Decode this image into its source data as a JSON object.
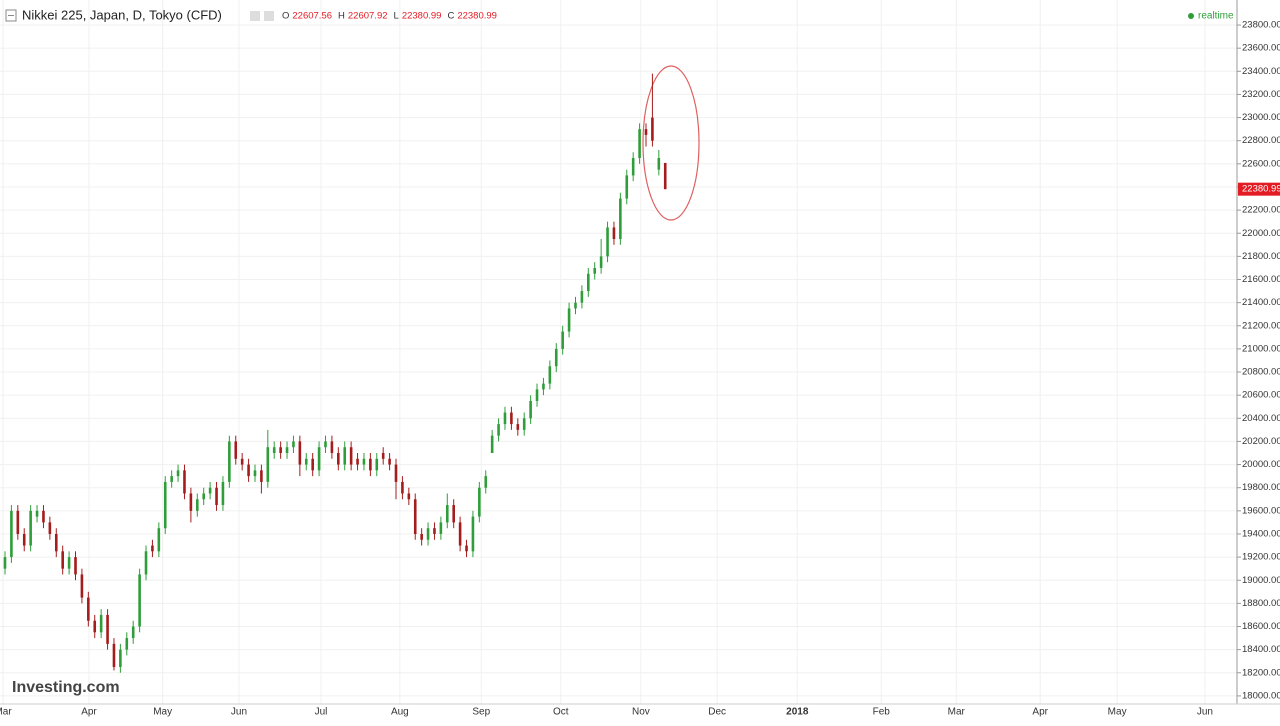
{
  "chart_data": {
    "type": "candlestick",
    "title": "Nikkei 225, Japan, D, Tokyo (CFD)",
    "ohlc_labels": [
      "O",
      "H",
      "L",
      "C"
    ],
    "status": "realtime",
    "brand": "Investing.com",
    "up_color": "#2f9e3a",
    "down_color": "#a51c1c",
    "last_color": "#e31b23",
    "grid": true,
    "xlim": [
      -0.78,
      192.2
    ],
    "xticks": [
      {
        "value": -0.3,
        "label": "Mar"
      },
      {
        "value": 13.1,
        "label": "Apr"
      },
      {
        "value": 24.6,
        "label": "May"
      },
      {
        "value": 36.5,
        "label": "Jun"
      },
      {
        "value": 49.3,
        "label": "Jul"
      },
      {
        "value": 61.6,
        "label": "Aug"
      },
      {
        "value": 74.3,
        "label": "Sep"
      },
      {
        "value": 86.7,
        "label": "Oct"
      },
      {
        "value": 99.2,
        "label": "Nov"
      },
      {
        "value": 111.1,
        "label": "Dec"
      },
      {
        "value": 123.6,
        "label": "2018"
      },
      {
        "value": 136.7,
        "label": "Feb"
      },
      {
        "value": 148.4,
        "label": "Mar"
      },
      {
        "value": 161.5,
        "label": "Apr"
      },
      {
        "value": 173.5,
        "label": "May"
      },
      {
        "value": 187.2,
        "label": "Jun"
      }
    ],
    "ylim": [
      17930,
      23930
    ],
    "yticks": [
      {
        "value": 18000,
        "label": "18000.00"
      },
      {
        "value": 18200,
        "label": "18200.00"
      },
      {
        "value": 18400,
        "label": "18400.00"
      },
      {
        "value": 18600,
        "label": "18600.00"
      },
      {
        "value": 18800,
        "label": "18800.00"
      },
      {
        "value": 19000,
        "label": "19000.00"
      },
      {
        "value": 19200,
        "label": "19200.00"
      },
      {
        "value": 19400,
        "label": "19400.00"
      },
      {
        "value": 19600,
        "label": "19600.00"
      },
      {
        "value": 19800,
        "label": "19800.00"
      },
      {
        "value": 20000,
        "label": "20000.00"
      },
      {
        "value": 20200,
        "label": "20200.00"
      },
      {
        "value": 20400,
        "label": "20400.00"
      },
      {
        "value": 20600,
        "label": "20600.00"
      },
      {
        "value": 20800,
        "label": "20800.00"
      },
      {
        "value": 21000,
        "label": "21000.00"
      },
      {
        "value": 21200,
        "label": "21200.00"
      },
      {
        "value": 21400,
        "label": "21400.00"
      },
      {
        "value": 21600,
        "label": "21600.00"
      },
      {
        "value": 21800,
        "label": "21800.00"
      },
      {
        "value": 22000,
        "label": "22000.00"
      },
      {
        "value": 22200,
        "label": "22200.00"
      },
      {
        "value": 22400,
        "label": "22400.00"
      },
      {
        "value": 22600,
        "label": "22600.00"
      },
      {
        "value": 22800,
        "label": "22800.00"
      },
      {
        "value": 23000,
        "label": "23000.00"
      },
      {
        "value": 23200,
        "label": "23200.00"
      },
      {
        "value": 23400,
        "label": "23400.00"
      },
      {
        "value": 23600,
        "label": "23600.00"
      },
      {
        "value": 23800,
        "label": "23800.00"
      }
    ],
    "x": [
      0,
      1,
      2,
      3,
      4,
      5,
      6,
      7,
      8,
      9,
      10,
      11,
      12,
      13,
      14,
      15,
      16,
      17,
      18,
      19,
      20,
      21,
      22,
      23,
      24,
      25,
      26,
      27,
      28,
      29,
      30,
      31,
      32,
      33,
      34,
      35,
      36,
      37,
      38,
      39,
      40,
      41,
      42,
      43,
      44,
      45,
      46,
      47,
      48,
      49,
      50,
      51,
      52,
      53,
      54,
      55,
      56,
      57,
      58,
      59,
      60,
      61,
      62,
      63,
      64,
      65,
      66,
      67,
      68,
      69,
      70,
      71,
      72,
      73,
      74,
      75,
      76,
      77,
      78,
      79,
      80,
      81,
      82,
      83,
      84,
      85,
      86,
      87,
      88,
      89,
      90,
      91,
      92,
      93,
      94,
      95,
      96,
      97,
      98,
      99,
      100,
      101,
      102,
      103
    ],
    "ohlc": [
      [
        19100,
        19250,
        19050,
        19200
      ],
      [
        19200,
        19650,
        19150,
        19600
      ],
      [
        19600,
        19650,
        19350,
        19400
      ],
      [
        19400,
        19450,
        19250,
        19300
      ],
      [
        19300,
        19650,
        19250,
        19600
      ],
      [
        19550,
        19650,
        19500,
        19600
      ],
      [
        19600,
        19650,
        19450,
        19500
      ],
      [
        19500,
        19550,
        19350,
        19400
      ],
      [
        19400,
        19450,
        19200,
        19250
      ],
      [
        19250,
        19300,
        19050,
        19100
      ],
      [
        19100,
        19250,
        19050,
        19200
      ],
      [
        19200,
        19250,
        19000,
        19050
      ],
      [
        19050,
        19100,
        18800,
        18850
      ],
      [
        18850,
        18900,
        18600,
        18650
      ],
      [
        18650,
        18700,
        18500,
        18550
      ],
      [
        18550,
        18750,
        18500,
        18700
      ],
      [
        18700,
        18750,
        18400,
        18450
      ],
      [
        18450,
        18500,
        18220,
        18250
      ],
      [
        18250,
        18450,
        18200,
        18400
      ],
      [
        18400,
        18550,
        18350,
        18500
      ],
      [
        18500,
        18650,
        18450,
        18600
      ],
      [
        18600,
        19100,
        18550,
        19050
      ],
      [
        19050,
        19300,
        19000,
        19250
      ],
      [
        19300,
        19350,
        19200,
        19250
      ],
      [
        19250,
        19500,
        19200,
        19450
      ],
      [
        19450,
        19900,
        19400,
        19850
      ],
      [
        19850,
        19950,
        19800,
        19900
      ],
      [
        19900,
        20000,
        19850,
        19950
      ],
      [
        19950,
        20000,
        19700,
        19750
      ],
      [
        19750,
        19800,
        19500,
        19600
      ],
      [
        19600,
        19750,
        19550,
        19700
      ],
      [
        19700,
        19800,
        19650,
        19750
      ],
      [
        19750,
        19850,
        19700,
        19800
      ],
      [
        19800,
        19850,
        19600,
        19650
      ],
      [
        19650,
        19900,
        19600,
        19850
      ],
      [
        19850,
        20250,
        19800,
        20200
      ],
      [
        20200,
        20250,
        20000,
        20050
      ],
      [
        20050,
        20100,
        19950,
        20000
      ],
      [
        20000,
        20050,
        19850,
        19900
      ],
      [
        19900,
        20000,
        19850,
        19950
      ],
      [
        19950,
        20000,
        19750,
        19850
      ],
      [
        19850,
        20300,
        19800,
        20150
      ],
      [
        20100,
        20200,
        20050,
        20150
      ],
      [
        20150,
        20200,
        20050,
        20100
      ],
      [
        20100,
        20200,
        20050,
        20150
      ],
      [
        20150,
        20250,
        20100,
        20200
      ],
      [
        20200,
        20250,
        19900,
        20000
      ],
      [
        20000,
        20100,
        19950,
        20050
      ],
      [
        20050,
        20100,
        19900,
        19950
      ],
      [
        19950,
        20200,
        19900,
        20150
      ],
      [
        20150,
        20250,
        20100,
        20200
      ],
      [
        20200,
        20250,
        20050,
        20100
      ],
      [
        20100,
        20150,
        19950,
        20000
      ],
      [
        20000,
        20200,
        19950,
        20150
      ],
      [
        20150,
        20200,
        19950,
        20000
      ],
      [
        20050,
        20100,
        19950,
        20000
      ],
      [
        20000,
        20100,
        19950,
        20050
      ],
      [
        20050,
        20100,
        19900,
        19950
      ],
      [
        19950,
        20100,
        19900,
        20050
      ],
      [
        20100,
        20150,
        20000,
        20050
      ],
      [
        20050,
        20100,
        19950,
        20000
      ],
      [
        20000,
        20050,
        19700,
        19850
      ],
      [
        19850,
        19900,
        19700,
        19750
      ],
      [
        19750,
        19800,
        19650,
        19700
      ],
      [
        19700,
        19750,
        19350,
        19400
      ],
      [
        19400,
        19450,
        19300,
        19350
      ],
      [
        19350,
        19500,
        19300,
        19450
      ],
      [
        19450,
        19500,
        19350,
        19400
      ],
      [
        19400,
        19550,
        19350,
        19500
      ],
      [
        19500,
        19750,
        19450,
        19650
      ],
      [
        19650,
        19700,
        19450,
        19500
      ],
      [
        19500,
        19550,
        19250,
        19300
      ],
      [
        19300,
        19350,
        19200,
        19250
      ],
      [
        19250,
        19600,
        19200,
        19550
      ],
      [
        19550,
        19850,
        19500,
        19800
      ],
      [
        19800,
        19950,
        19750,
        19900
      ],
      [
        20100,
        20300,
        20100,
        20250
      ],
      [
        20250,
        20400,
        20200,
        20350
      ],
      [
        20350,
        20500,
        20300,
        20450
      ],
      [
        20450,
        20500,
        20300,
        20350
      ],
      [
        20350,
        20400,
        20250,
        20300
      ],
      [
        20300,
        20450,
        20250,
        20400
      ],
      [
        20400,
        20600,
        20350,
        20550
      ],
      [
        20550,
        20700,
        20500,
        20650
      ],
      [
        20650,
        20750,
        20600,
        20700
      ],
      [
        20700,
        20900,
        20650,
        20850
      ],
      [
        20850,
        21050,
        20800,
        21000
      ],
      [
        21000,
        21200,
        20950,
        21150
      ],
      [
        21150,
        21400,
        21100,
        21350
      ],
      [
        21350,
        21450,
        21300,
        21400
      ],
      [
        21400,
        21550,
        21350,
        21500
      ],
      [
        21500,
        21700,
        21450,
        21650
      ],
      [
        21650,
        21750,
        21600,
        21700
      ],
      [
        21700,
        21950,
        21650,
        21800
      ],
      [
        21800,
        22100,
        21750,
        22050
      ],
      [
        22050,
        22100,
        21900,
        21950
      ],
      [
        21950,
        22350,
        21900,
        22300
      ],
      [
        22300,
        22550,
        22250,
        22500
      ],
      [
        22500,
        22700,
        22450,
        22650
      ],
      [
        22650,
        22950,
        22600,
        22900
      ],
      [
        22900,
        22950,
        22750,
        22850
      ],
      [
        23000,
        23380,
        22750,
        22800
      ],
      [
        22550,
        22720,
        22500,
        22650
      ],
      [
        22607.56,
        22607.92,
        22380.99,
        22380.99
      ]
    ]
  }
}
